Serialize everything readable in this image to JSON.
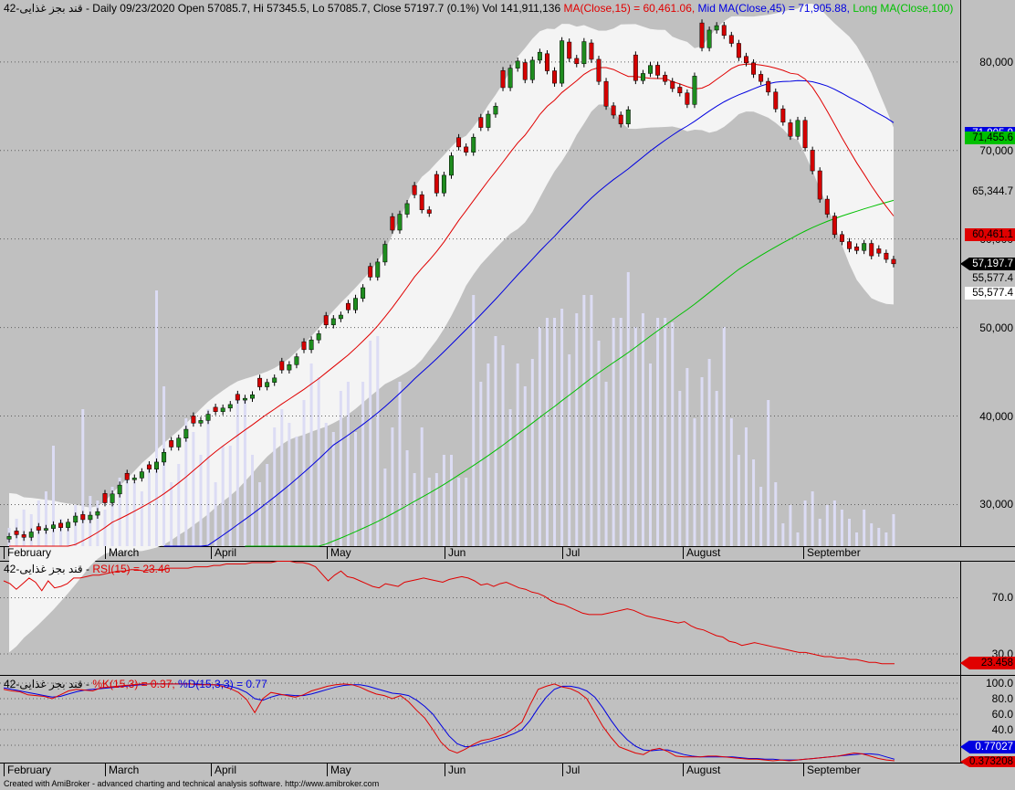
{
  "title": {
    "symbol": "قند بجز غذایی-42",
    "info": " - Daily 09/23/2020 Open 57085.7, Hi 57345.5, Lo 57085.7, Close 57197.7 (0.1%) Vol 141,911,136 ",
    "ma15": "MA(Close,15) = 60,461.06,",
    "ma45": " Mid MA(Close,45) = 71,905.88,",
    "ma100": " Long MA(Close,100)"
  },
  "rsi_header": {
    "symbol": "قند بجز غذایی-42",
    "dash": " - ",
    "label": "RSI(15) = 23.46"
  },
  "stoch_header": {
    "symbol": "قند بجز غذایی-42",
    "dash": " - ",
    "k": "%K(15,3) = 0.37,",
    "d": " %D(15,3,3) = 0.77"
  },
  "footer": "Created with AmiBroker - advanced charting and technical analysis software. http://www.amibroker.com",
  "colors": {
    "bull": "#1e8c1e",
    "bear": "#d40000",
    "ma15": "#e00000",
    "ma45": "#0000e0",
    "ma100": "#00c000",
    "band": "#f4f4f4",
    "volume": "#dcdcf4",
    "rsi": "#e00000",
    "k": "#e00000",
    "d": "#0000e0"
  },
  "chart_data": [
    {
      "type": "candlestick",
      "title": "قند بجز غذایی-42 - Daily 09/23/2020",
      "months": [
        "February",
        "March",
        "April",
        "May",
        "Jun",
        "Jul",
        "August",
        "September"
      ],
      "y_ticks": [
        "30,000",
        "40,000",
        "50,000",
        "60,000",
        "70,000",
        "80,000"
      ],
      "y_range": [
        25300,
        87000
      ],
      "last_values": {
        "close": "57,197.7",
        "ma15": "60,461.1",
        "ma45": "71,905.9",
        "ma100": "71,455.6",
        "level_a": "65,344.7",
        "level_b": "55,577.4",
        "level_c": "55,577.4"
      },
      "volume": [
        4,
        6,
        8,
        7,
        10,
        12,
        22,
        6,
        5,
        9,
        30,
        11,
        10,
        8,
        13,
        15,
        16,
        14,
        12,
        18,
        56,
        35,
        14,
        18,
        28,
        25,
        20,
        30,
        14,
        22,
        22,
        32,
        32,
        20,
        14,
        18,
        26,
        30,
        27,
        24,
        32,
        40,
        37,
        27,
        25,
        34,
        36,
        25,
        36,
        45,
        46,
        17,
        26,
        36,
        21,
        16,
        26,
        15,
        16,
        20,
        20,
        15,
        15,
        55,
        36,
        40,
        46,
        44,
        30,
        40,
        35,
        41,
        48,
        50,
        50,
        52,
        42,
        51,
        55,
        55,
        45,
        36,
        50,
        50,
        60,
        48,
        51,
        40,
        50,
        50,
        49,
        34,
        39,
        28,
        37,
        41,
        34,
        48,
        28,
        20,
        26,
        19,
        13,
        32,
        14,
        5,
        9,
        3,
        10,
        12,
        6,
        9,
        10,
        8,
        6,
        3,
        8,
        5,
        4,
        3,
        7
      ],
      "candles_ohlc": "generated from close series in script",
      "close": [
        26400,
        26600,
        26300,
        26900,
        27100,
        27300,
        27700,
        27400,
        28000,
        28700,
        28300,
        28800,
        29200,
        30200,
        31200,
        32200,
        32800,
        33000,
        33700,
        34000,
        34800,
        35900,
        36500,
        37500,
        38500,
        39200,
        39500,
        40200,
        40500,
        40900,
        41300,
        41800,
        42000,
        42400,
        43300,
        43800,
        44300,
        45200,
        45800,
        46700,
        47500,
        48600,
        49300,
        50300,
        51000,
        51400,
        52000,
        53300,
        54500,
        55700,
        57400,
        59400,
        61000,
        62800,
        64000,
        65000,
        63300,
        62900,
        65200,
        67200,
        69400,
        70400,
        69800,
        71500,
        72600,
        74100,
        75000,
        77100,
        79300,
        80100,
        78000,
        80200,
        81100,
        79000,
        77600,
        82400,
        80400,
        79800,
        82300,
        80300,
        77800,
        75000,
        74000,
        73000,
        74600,
        77900,
        78700,
        79600,
        78500,
        77800,
        77000,
        76500,
        75200,
        78400,
        81600,
        83600,
        84100,
        83000,
        82100,
        80500,
        79900,
        78600,
        77800,
        76600,
        74700,
        73200,
        71600,
        73400,
        70300,
        67700,
        64500,
        62800,
        60500,
        59700,
        58900,
        58700,
        59500,
        58100,
        58400,
        57700,
        57200
      ],
      "rsi": [
        82,
        80,
        76,
        80,
        84,
        81,
        75,
        82,
        77,
        78,
        80,
        84,
        84,
        85,
        86,
        86,
        87,
        88,
        89,
        89,
        90,
        90,
        89,
        90,
        90,
        90,
        91,
        91,
        91,
        91,
        92,
        92,
        92,
        93,
        93,
        94,
        94,
        94,
        94,
        95,
        95,
        95,
        95,
        96,
        96,
        96,
        95,
        95,
        94,
        92,
        87,
        82,
        86,
        89,
        85,
        84,
        82,
        80,
        78,
        77,
        80,
        79,
        78,
        81,
        82,
        83,
        84,
        83,
        82,
        81,
        83,
        84,
        85,
        84,
        82,
        79,
        80,
        78,
        80,
        81,
        79,
        77,
        76,
        74,
        73,
        71,
        68,
        66,
        65,
        63,
        61,
        59,
        58,
        58,
        58,
        59,
        60,
        61,
        62,
        61,
        59,
        57,
        56,
        55,
        54,
        53,
        52,
        53,
        50,
        48,
        47,
        45,
        43,
        42,
        39,
        38,
        36,
        37,
        38,
        37,
        36,
        35,
        34,
        33,
        32,
        31,
        31,
        30,
        29,
        28,
        28,
        27,
        27,
        26,
        26,
        25,
        24,
        24,
        23,
        23,
        23
      ],
      "stoch_k": [
        92,
        90,
        89,
        85,
        84,
        83,
        80,
        85,
        90,
        92,
        91,
        90,
        94,
        95,
        96,
        97,
        98,
        99,
        99,
        99,
        99,
        99,
        99,
        99,
        98,
        98,
        98,
        96,
        93,
        88,
        79,
        62,
        80,
        88,
        86,
        84,
        82,
        85,
        90,
        93,
        96,
        98,
        99,
        98,
        95,
        90,
        86,
        84,
        80,
        84,
        76,
        65,
        55,
        40,
        24,
        14,
        10,
        15,
        21,
        26,
        28,
        31,
        35,
        42,
        50,
        72,
        92,
        96,
        99,
        95,
        93,
        88,
        80,
        62,
        44,
        30,
        18,
        14,
        10,
        8,
        14,
        16,
        12,
        6,
        5,
        5,
        5,
        6,
        6,
        5,
        4,
        3,
        2,
        2,
        1,
        0,
        1,
        0,
        1,
        2,
        3,
        4,
        5,
        6,
        8,
        10,
        9,
        6,
        3,
        1,
        0
      ],
      "stoch_d": [
        94,
        92,
        90,
        88,
        86,
        84,
        82,
        83,
        86,
        89,
        91,
        92,
        93,
        94,
        95,
        96,
        97,
        98,
        99,
        99,
        99,
        99,
        99,
        99,
        99,
        98,
        98,
        98,
        96,
        93,
        88,
        80,
        78,
        82,
        85,
        85,
        84,
        84,
        86,
        89,
        92,
        95,
        97,
        98,
        98,
        96,
        93,
        90,
        87,
        86,
        84,
        78,
        70,
        60,
        46,
        32,
        22,
        18,
        19,
        22,
        25,
        28,
        31,
        35,
        40,
        52,
        68,
        82,
        92,
        96,
        96,
        94,
        90,
        82,
        68,
        52,
        38,
        27,
        19,
        14,
        13,
        14,
        14,
        11,
        8,
        6,
        5,
        5,
        5,
        5,
        5,
        4,
        3,
        3,
        2,
        2,
        1,
        1,
        1,
        2,
        3,
        4,
        5,
        6,
        7,
        8,
        9,
        9,
        8,
        5,
        2
      ],
      "ma100_series": "computed",
      "ma45_series": "computed",
      "ma15_series": "computed"
    },
    {
      "type": "line",
      "title": "RSI(15)",
      "y_ticks": [
        "30.0",
        "70.0"
      ],
      "last_value": "23.458"
    },
    {
      "type": "line",
      "title": "Stochastic %K(15,3) %D(15,3,3)",
      "y_ticks": [
        "20.0",
        "40.0",
        "60.0",
        "80.0",
        "100.0"
      ],
      "last_k": "0.373208",
      "last_d": "0.77027"
    }
  ]
}
